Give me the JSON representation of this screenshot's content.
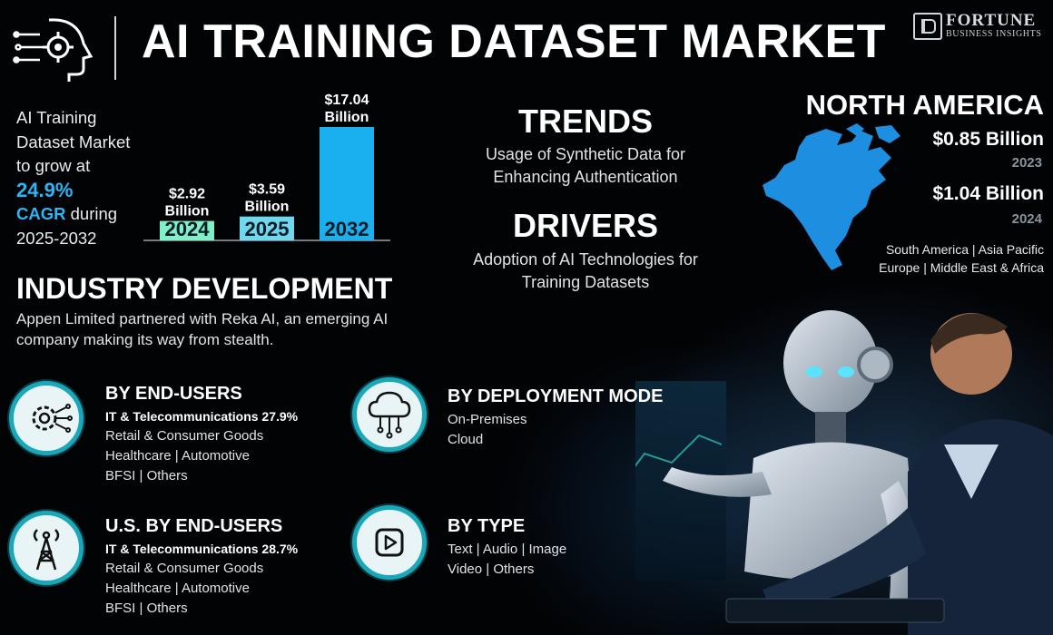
{
  "header": {
    "title": "AI TRAINING DATASET MARKET",
    "brand_name": "FORTUNE",
    "brand_sub": "BUSINESS INSIGHTS"
  },
  "intro": {
    "line1": "AI Training",
    "line2": "Dataset Market",
    "line3": "to grow at",
    "cagr": "24.9%",
    "cagr_label": "CAGR",
    "line4": "during",
    "period": "2025-2032"
  },
  "chart_data": {
    "type": "bar",
    "categories": [
      "2024",
      "2025",
      "2032"
    ],
    "values": [
      2.92,
      3.59,
      17.04
    ],
    "data_labels": [
      {
        "value": "$2.92",
        "unit": "Billion"
      },
      {
        "value": "$3.59",
        "unit": "Billion"
      },
      {
        "value": "$17.04",
        "unit": "Billion"
      }
    ],
    "colors": [
      "#7ff0c8",
      "#6fd8ee",
      "#1ab0f0"
    ],
    "title": "",
    "xlabel": "",
    "ylabel": "",
    "grid": false
  },
  "trends": {
    "heading": "TRENDS",
    "text": "Usage of Synthetic Data for Enhancing Authentication"
  },
  "drivers": {
    "heading": "DRIVERS",
    "text": "Adoption of AI Technologies for Training Datasets"
  },
  "north_america": {
    "heading": "NORTH AMERICA",
    "values": [
      {
        "value": "$0.85 Billion",
        "year": "2023"
      },
      {
        "value": "$1.04 Billion",
        "year": "2024"
      }
    ],
    "regions_line1": "South America  |  Asia Pacific",
    "regions_line2": "Europe  |  Middle East & Africa"
  },
  "industry": {
    "heading": "INDUSTRY DEVELOPMENT",
    "text": "Appen Limited partnered with Reka AI, an emerging AI company making its way from stealth."
  },
  "segments": {
    "end_users": {
      "title": "BY END-USERS",
      "lead": "IT & Telecommunications 27.9%",
      "lines": [
        "Retail & Consumer Goods",
        "Healthcare  |  Automotive",
        "BFSI  |  Others"
      ],
      "icon": "gear-circuit-icon"
    },
    "deployment": {
      "title": "BY DEPLOYMENT  MODE",
      "lines": [
        "On-Premises",
        "Cloud"
      ],
      "icon": "cloud-network-icon"
    },
    "us_end_users": {
      "title": "U.S. BY END-USERS",
      "lead": "IT & Telecommunications 28.7%",
      "lines": [
        "Retail & Consumer Goods",
        "Healthcare  |  Automotive",
        "BFSI  |  Others"
      ],
      "icon": "antenna-tower-icon"
    },
    "type": {
      "title": "BY TYPE",
      "lines": [
        "Text  |  Audio  |  Image",
        "Video  |  Others"
      ],
      "icon": "video-play-icon"
    }
  },
  "colors": {
    "accent": "#29b6f6",
    "teal_ring": "#1aa7b8",
    "map": "#1e8fe0"
  }
}
